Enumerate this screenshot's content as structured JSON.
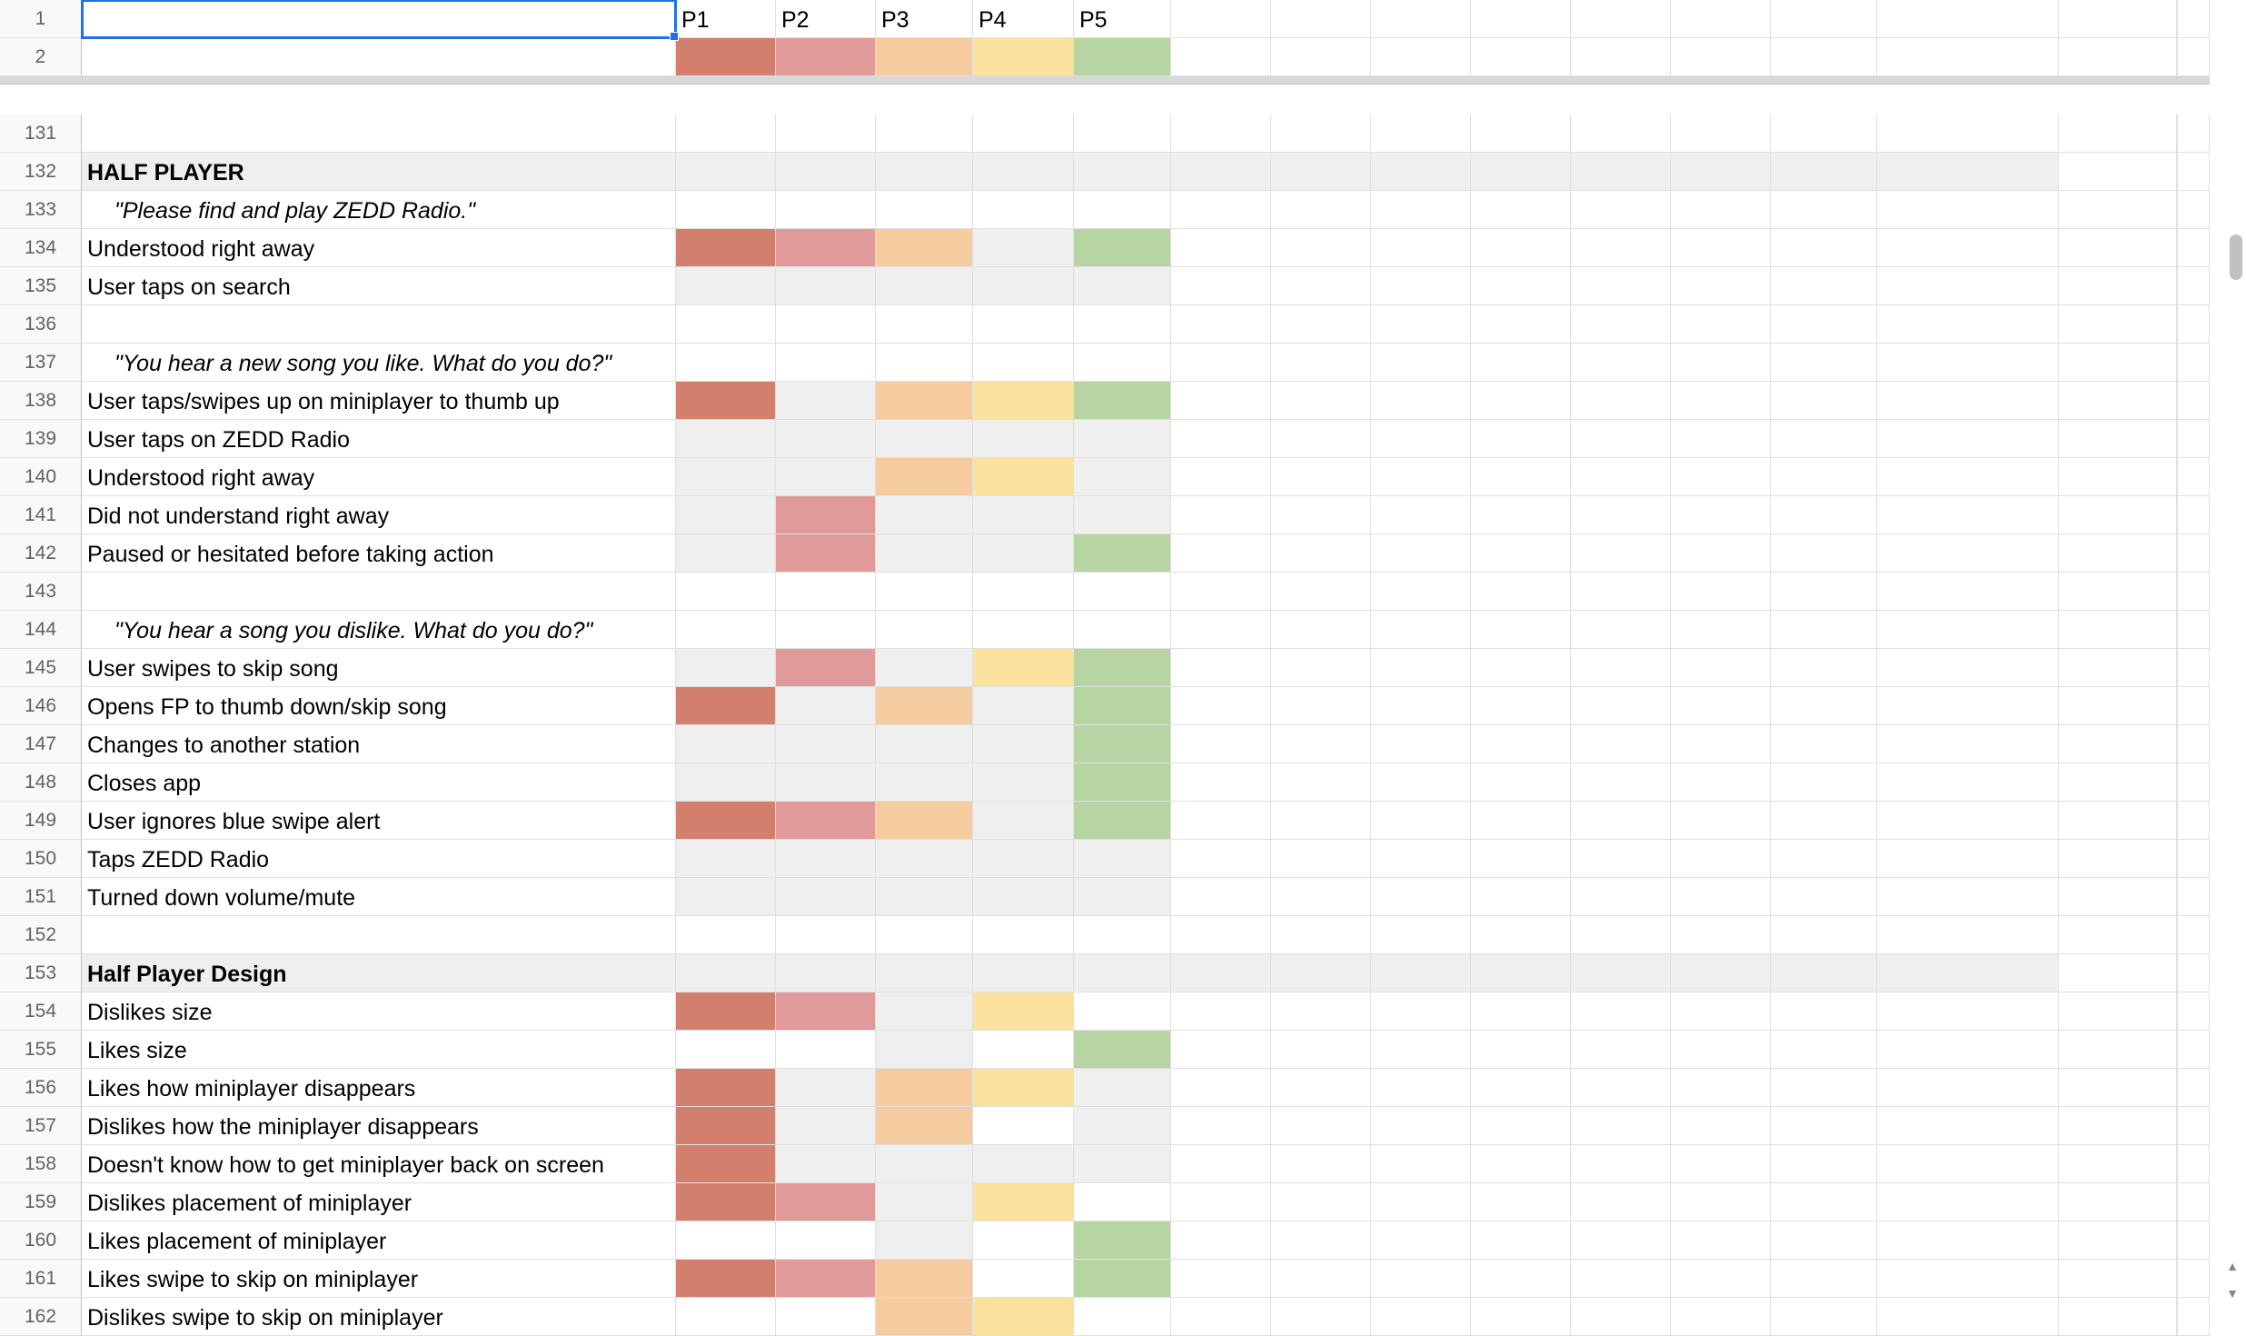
{
  "colors": {
    "P1": "#d37f6e",
    "P2": "#e09a9a",
    "P3": "#f4cc9f",
    "P4": "#fbe29f",
    "P5": "#b7d5a3",
    "gray": "#efefef",
    "white": "#ffffff"
  },
  "header": {
    "row_number_1": "1",
    "row_number_2": "2",
    "participants": [
      "P1",
      "P2",
      "P3",
      "P4",
      "P5"
    ],
    "legend_fills": [
      "P1",
      "P2",
      "P3",
      "P4",
      "P5"
    ]
  },
  "rows": [
    {
      "n": "131",
      "label": "",
      "style": "",
      "fills": [
        "white",
        "white",
        "white",
        "white",
        "white"
      ]
    },
    {
      "n": "132",
      "label": "HALF PLAYER",
      "style": "section",
      "fills": [
        "gray",
        "gray",
        "gray",
        "gray",
        "gray"
      ]
    },
    {
      "n": "133",
      "label": "\"Please find and play ZEDD Radio.\"",
      "style": "prompt",
      "fills": [
        "white",
        "white",
        "white",
        "white",
        "white"
      ]
    },
    {
      "n": "134",
      "label": "Understood right away",
      "style": "",
      "fills": [
        "P1",
        "P2",
        "P3",
        "gray",
        "P5"
      ]
    },
    {
      "n": "135",
      "label": "User taps on search",
      "style": "",
      "fills": [
        "gray",
        "gray",
        "gray",
        "gray",
        "gray"
      ]
    },
    {
      "n": "136",
      "label": "",
      "style": "",
      "fills": [
        "white",
        "white",
        "white",
        "white",
        "white"
      ]
    },
    {
      "n": "137",
      "label": "\"You hear a new song you like. What do you do?\"",
      "style": "prompt",
      "fills": [
        "white",
        "white",
        "white",
        "white",
        "white"
      ]
    },
    {
      "n": "138",
      "label": "User taps/swipes up on miniplayer to thumb up",
      "style": "",
      "fills": [
        "P1",
        "gray",
        "P3",
        "P4",
        "P5"
      ]
    },
    {
      "n": "139",
      "label": "User taps on ZEDD Radio",
      "style": "",
      "fills": [
        "gray",
        "gray",
        "gray",
        "gray",
        "gray"
      ]
    },
    {
      "n": "140",
      "label": "Understood right away",
      "style": "",
      "fills": [
        "gray",
        "gray",
        "P3",
        "P4",
        "gray"
      ]
    },
    {
      "n": "141",
      "label": "Did not understand right away",
      "style": "",
      "fills": [
        "gray",
        "P2",
        "gray",
        "gray",
        "gray"
      ]
    },
    {
      "n": "142",
      "label": "Paused or hesitated before taking action",
      "style": "",
      "fills": [
        "gray",
        "P2",
        "gray",
        "gray",
        "P5"
      ]
    },
    {
      "n": "143",
      "label": "",
      "style": "",
      "fills": [
        "white",
        "white",
        "white",
        "white",
        "white"
      ]
    },
    {
      "n": "144",
      "label": "\"You hear a song you dislike. What do you do?\"",
      "style": "prompt",
      "fills": [
        "white",
        "white",
        "white",
        "white",
        "white"
      ]
    },
    {
      "n": "145",
      "label": "User swipes to skip song",
      "style": "",
      "fills": [
        "gray",
        "P2",
        "gray",
        "P4",
        "P5"
      ]
    },
    {
      "n": "146",
      "label": "Opens FP to thumb down/skip song",
      "style": "",
      "fills": [
        "P1",
        "gray",
        "P3",
        "gray",
        "P5"
      ]
    },
    {
      "n": "147",
      "label": "Changes to another station",
      "style": "",
      "fills": [
        "gray",
        "gray",
        "gray",
        "gray",
        "P5"
      ]
    },
    {
      "n": "148",
      "label": "Closes app",
      "style": "",
      "fills": [
        "gray",
        "gray",
        "gray",
        "gray",
        "P5"
      ]
    },
    {
      "n": "149",
      "label": "User ignores blue swipe alert",
      "style": "",
      "fills": [
        "P1",
        "P2",
        "P3",
        "gray",
        "P5"
      ]
    },
    {
      "n": "150",
      "label": "Taps ZEDD Radio",
      "style": "",
      "fills": [
        "gray",
        "gray",
        "gray",
        "gray",
        "gray"
      ]
    },
    {
      "n": "151",
      "label": "Turned down volume/mute",
      "style": "",
      "fills": [
        "gray",
        "gray",
        "gray",
        "gray",
        "gray"
      ]
    },
    {
      "n": "152",
      "label": "",
      "style": "",
      "fills": [
        "white",
        "white",
        "white",
        "white",
        "white"
      ]
    },
    {
      "n": "153",
      "label": "Half Player Design",
      "style": "section",
      "fills": [
        "gray",
        "gray",
        "gray",
        "gray",
        "gray"
      ]
    },
    {
      "n": "154",
      "label": "Dislikes size",
      "style": "",
      "fills": [
        "P1",
        "P2",
        "gray",
        "P4",
        "white"
      ]
    },
    {
      "n": "155",
      "label": "Likes size",
      "style": "",
      "fills": [
        "white",
        "white",
        "gray",
        "white",
        "P5"
      ]
    },
    {
      "n": "156",
      "label": "Likes how miniplayer disappears",
      "style": "",
      "fills": [
        "P1",
        "gray",
        "P3",
        "P4",
        "gray"
      ]
    },
    {
      "n": "157",
      "label": "Dislikes how the miniplayer disappears",
      "style": "",
      "fills": [
        "P1",
        "gray",
        "P3",
        "white",
        "gray"
      ]
    },
    {
      "n": "158",
      "label": "Doesn't know how to get miniplayer back on screen",
      "style": "",
      "fills": [
        "P1",
        "gray",
        "gray",
        "gray",
        "gray"
      ]
    },
    {
      "n": "159",
      "label": "Dislikes placement of miniplayer",
      "style": "",
      "fills": [
        "P1",
        "P2",
        "gray",
        "P4",
        "white"
      ]
    },
    {
      "n": "160",
      "label": "Likes placement of miniplayer",
      "style": "",
      "fills": [
        "white",
        "white",
        "gray",
        "white",
        "P5"
      ]
    },
    {
      "n": "161",
      "label": "Likes swipe to skip on miniplayer",
      "style": "",
      "fills": [
        "P1",
        "P2",
        "P3",
        "white",
        "P5"
      ]
    },
    {
      "n": "162",
      "label": "Dislikes swipe to skip on miniplayer",
      "style": "",
      "fills": [
        "white",
        "white",
        "P3",
        "P4",
        "white"
      ]
    }
  ]
}
